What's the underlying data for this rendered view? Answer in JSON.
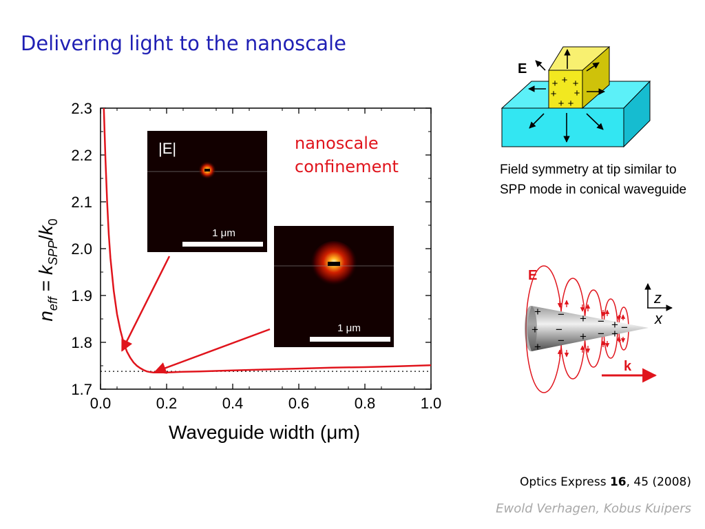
{
  "slide": {
    "title": "Delivering light to the nanoscale",
    "citation_journal": "Optics Express ",
    "citation_volume": "16",
    "citation_rest": ", 45 (2008)",
    "authors": "Ewold Verhagen, Kobus Kuipers"
  },
  "chart_data": {
    "type": "line",
    "xlabel": "Waveguide width (μm)",
    "ylabel_parts": [
      "n",
      "eff",
      " = ",
      "k",
      "SPP",
      "/",
      "k",
      "0"
    ],
    "xlim": [
      0.0,
      1.0
    ],
    "ylim": [
      1.7,
      2.3
    ],
    "xticks": [
      "0.0",
      "0.2",
      "0.4",
      "0.6",
      "0.8",
      "1.0"
    ],
    "yticks": [
      "1.7",
      "1.8",
      "1.9",
      "2.0",
      "2.1",
      "2.2",
      "2.3"
    ],
    "series": [
      {
        "color": "#e0141c",
        "x": [
          0.01,
          0.015,
          0.02,
          0.025,
          0.03,
          0.04,
          0.05,
          0.06,
          0.07,
          0.08,
          0.09,
          0.1,
          0.11,
          0.12,
          0.13,
          0.14,
          0.15,
          0.16,
          0.17,
          0.18,
          0.2,
          0.25,
          0.3,
          0.4,
          0.5,
          0.6,
          0.7,
          0.8,
          0.9,
          1.0
        ],
        "y": [
          2.3,
          2.19,
          2.1,
          2.03,
          1.98,
          1.91,
          1.86,
          1.826,
          1.799,
          1.78,
          1.767,
          1.757,
          1.75,
          1.745,
          1.741,
          1.738,
          1.7365,
          1.7358,
          1.7356,
          1.7356,
          1.7358,
          1.737,
          1.738,
          1.74,
          1.742,
          1.744,
          1.746,
          1.747,
          1.749,
          1.751
        ]
      }
    ],
    "reference_line": {
      "y": 1.738,
      "style": "dotted"
    },
    "annotations": {
      "confinement_line1": "nanoscale",
      "confinement_line2": "confinement",
      "inset_top_label": "|E|",
      "scale_bar_1": "1 μm",
      "scale_bar_2": "1 μm"
    },
    "arrows_to": [
      {
        "x": 0.065,
        "y": 1.782
      },
      {
        "x": 0.165,
        "y": 1.737
      }
    ]
  },
  "schematic_top": {
    "field_label": "E",
    "caption": "Field symmetry at tip similar to SPP mode in conical waveguide"
  },
  "schematic_bottom": {
    "field_label": "E",
    "axis_z": "z",
    "axis_x": "x",
    "wavevector_label": "k"
  },
  "colors": {
    "title": "#1f1fb4",
    "curve": "#e0141c",
    "substrate": "#33e6f2",
    "tip": "#f2e820",
    "authors": "#a8a8a8"
  }
}
